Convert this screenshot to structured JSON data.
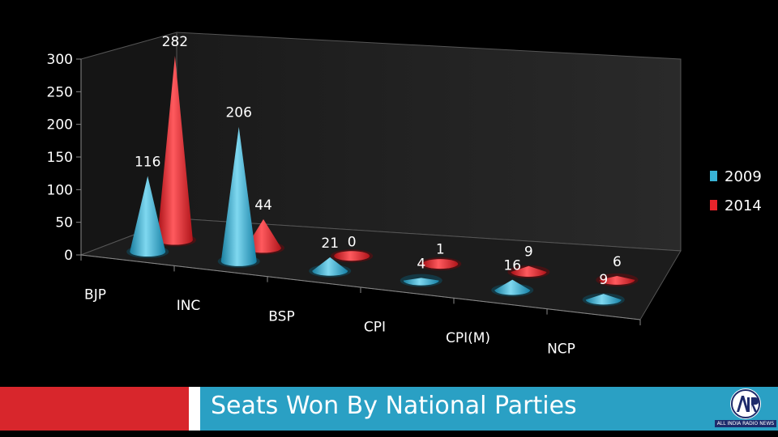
{
  "footer": {
    "title": "Seats Won By National Parties",
    "logo_text": "ALL INDIA RADIO NEWS",
    "left_color": "#d8262c",
    "right_color": "#2aa0c4"
  },
  "chart_data": {
    "type": "bar",
    "subtype": "3d-cone",
    "title": "",
    "xlabel": "",
    "ylabel": "",
    "categories": [
      "BJP",
      "INC",
      "BSP",
      "CPI",
      "CPI(M)",
      "NCP"
    ],
    "series": [
      {
        "name": "2009",
        "values": [
          116,
          206,
          21,
          4,
          16,
          9
        ],
        "color": "#39b3d6"
      },
      {
        "name": "2014",
        "values": [
          282,
          44,
          0,
          1,
          9,
          6
        ],
        "color": "#e8242b"
      }
    ],
    "ylim": [
      0,
      300
    ],
    "yticks": [
      0,
      50,
      100,
      150,
      200,
      250,
      300
    ],
    "grid": false,
    "legend_position": "right"
  }
}
